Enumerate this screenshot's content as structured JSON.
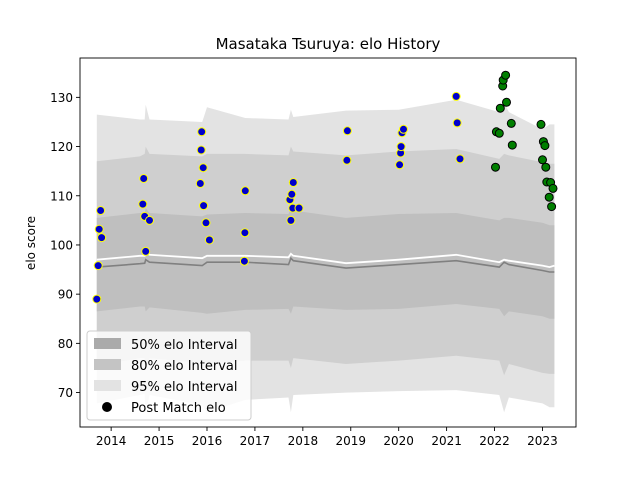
{
  "chart_data": {
    "type": "scatter",
    "title": "Masataka Tsuruya: elo History",
    "xlabel": "",
    "ylabel": "elo score",
    "xlim": [
      2013.35,
      2023.7
    ],
    "ylim": [
      63,
      138
    ],
    "xticks": [
      2014,
      2015,
      2016,
      2017,
      2018,
      2019,
      2020,
      2021,
      2022,
      2023
    ],
    "yticks": [
      70,
      80,
      90,
      100,
      110,
      120,
      130
    ],
    "grid": false,
    "legend_position": "lower-left",
    "legend": [
      {
        "label": "50% elo Interval",
        "color": "#aaaaaa"
      },
      {
        "label": "80% elo Interval",
        "color": "#c4c4c4"
      },
      {
        "label": "95% elo Interval",
        "color": "#e3e3e3"
      },
      {
        "label": "Post Match elo",
        "color": "#000000"
      }
    ],
    "colors": {
      "band95": "#e3e3e3",
      "band80": "#cfcfcf",
      "band50": "#bfbfbf",
      "median_line": "#808080",
      "mean_line": "#ffffff",
      "point_blue": "#0000cc",
      "point_blue_edge": "#ffff00",
      "point_green": "#007f00",
      "point_green_edge": "#000000"
    },
    "bands": {
      "x": [
        2013.7,
        2014.6,
        2014.7,
        2014.72,
        2014.8,
        2015.9,
        2016.0,
        2016.8,
        2017.7,
        2017.75,
        2017.8,
        2018.9,
        2020.0,
        2021.2,
        2022.1,
        2022.2,
        2022.3,
        2023.0,
        2023.15,
        2023.25
      ],
      "lo95": [
        67.8,
        69.5,
        69.7,
        65.5,
        69.5,
        67.5,
        66.0,
        68.5,
        69.0,
        66.0,
        69.5,
        70.0,
        70.3,
        70.5,
        69.5,
        66.0,
        69.0,
        67.8,
        67.0,
        67.0
      ],
      "lo80": [
        75.5,
        77.0,
        77.0,
        75.0,
        77.0,
        76.0,
        75.8,
        76.5,
        76.5,
        75.0,
        77.0,
        75.8,
        76.5,
        77.5,
        76.5,
        73.5,
        75.8,
        74.0,
        73.8,
        73.8
      ],
      "lo50": [
        86.5,
        87.5,
        87.5,
        86.5,
        87.3,
        86.2,
        86.0,
        86.8,
        87.0,
        86.0,
        87.5,
        86.8,
        87.0,
        88.0,
        87.0,
        85.5,
        86.5,
        85.5,
        85.0,
        85.0
      ],
      "median": [
        95.5,
        96.2,
        96.3,
        97.0,
        96.5,
        95.8,
        96.5,
        96.5,
        96.0,
        97.3,
        96.8,
        95.3,
        96.0,
        96.8,
        95.5,
        96.5,
        96.0,
        94.8,
        94.5,
        94.5
      ],
      "mean": [
        97.0,
        97.8,
        97.8,
        98.5,
        98.0,
        97.3,
        97.8,
        97.8,
        97.5,
        98.2,
        97.8,
        96.3,
        97.0,
        98.0,
        96.5,
        97.0,
        96.8,
        95.8,
        95.5,
        95.8
      ],
      "hi50": [
        105.5,
        106.5,
        106.5,
        107.5,
        106.5,
        105.8,
        106.2,
        106.5,
        106.3,
        107.5,
        107.0,
        105.5,
        106.3,
        106.5,
        105.0,
        105.5,
        105.5,
        104.5,
        104.0,
        104.0
      ],
      "hi80": [
        117.0,
        118.0,
        118.5,
        120.0,
        118.5,
        118.0,
        118.5,
        118.5,
        118.2,
        120.0,
        119.0,
        118.2,
        119.0,
        119.5,
        117.5,
        118.5,
        118.2,
        116.8,
        116.5,
        116.5
      ],
      "hi95": [
        126.5,
        125.5,
        125.5,
        128.5,
        125.5,
        125.0,
        128.0,
        125.8,
        125.5,
        127.5,
        126.0,
        127.3,
        127.5,
        129.5,
        127.0,
        129.0,
        127.0,
        123.5,
        124.5,
        124.5
      ]
    },
    "series": [
      {
        "color": "blue",
        "points": [
          [
            2013.7,
            89.0
          ],
          [
            2013.73,
            95.8
          ],
          [
            2013.75,
            103.2
          ],
          [
            2013.78,
            107.0
          ],
          [
            2013.8,
            101.5
          ],
          [
            2014.66,
            108.3
          ],
          [
            2014.68,
            113.5
          ],
          [
            2014.7,
            105.8
          ],
          [
            2014.72,
            98.7
          ],
          [
            2014.8,
            105.0
          ],
          [
            2015.86,
            112.5
          ],
          [
            2015.88,
            119.3
          ],
          [
            2015.89,
            123.0
          ],
          [
            2015.92,
            115.7
          ],
          [
            2015.93,
            108.0
          ],
          [
            2015.98,
            104.5
          ],
          [
            2016.05,
            101.0
          ],
          [
            2016.78,
            96.7
          ],
          [
            2016.79,
            102.5
          ],
          [
            2016.8,
            111.0
          ],
          [
            2017.73,
            109.2
          ],
          [
            2017.75,
            105.0
          ],
          [
            2017.77,
            110.3
          ],
          [
            2017.79,
            107.5
          ],
          [
            2017.8,
            112.7
          ],
          [
            2017.92,
            107.5
          ],
          [
            2018.92,
            117.2
          ],
          [
            2018.93,
            123.2
          ],
          [
            2020.02,
            116.3
          ],
          [
            2020.04,
            118.7
          ],
          [
            2020.05,
            120.0
          ],
          [
            2020.07,
            122.8
          ],
          [
            2020.1,
            123.5
          ],
          [
            2021.2,
            130.2
          ],
          [
            2021.22,
            124.8
          ],
          [
            2021.28,
            117.5
          ]
        ]
      },
      {
        "color": "green",
        "points": [
          [
            2022.02,
            115.8
          ],
          [
            2022.04,
            123.0
          ],
          [
            2022.1,
            122.7
          ],
          [
            2022.12,
            127.8
          ],
          [
            2022.17,
            132.3
          ],
          [
            2022.18,
            133.5
          ],
          [
            2022.23,
            134.5
          ],
          [
            2022.25,
            129.0
          ],
          [
            2022.35,
            124.7
          ],
          [
            2022.37,
            120.3
          ],
          [
            2022.97,
            124.5
          ],
          [
            2023.0,
            117.3
          ],
          [
            2023.02,
            121.0
          ],
          [
            2023.05,
            120.2
          ],
          [
            2023.07,
            115.8
          ],
          [
            2023.09,
            112.8
          ],
          [
            2023.14,
            109.7
          ],
          [
            2023.17,
            112.7
          ],
          [
            2023.19,
            107.8
          ],
          [
            2023.22,
            111.5
          ]
        ]
      }
    ]
  }
}
